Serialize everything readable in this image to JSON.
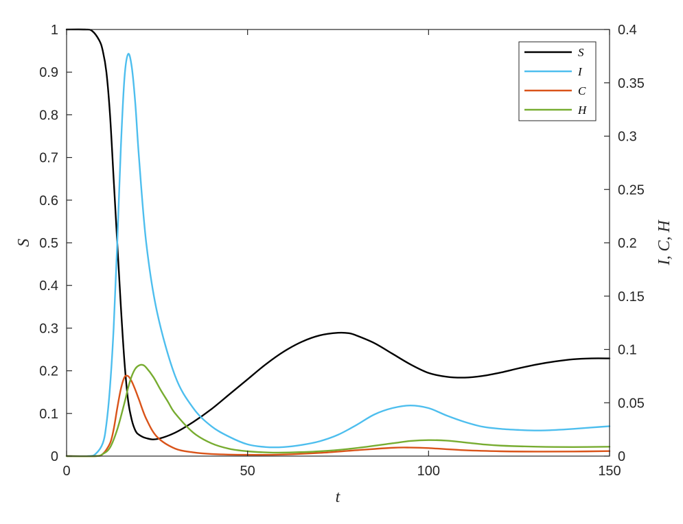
{
  "chart_data": {
    "type": "line",
    "xlabel": "t",
    "ylabel_left": "S",
    "ylabel_right": "I, C, H",
    "xlim": [
      0,
      150
    ],
    "ylim_left": [
      0,
      1
    ],
    "ylim_right": [
      0,
      0.4
    ],
    "x_ticks": [
      0,
      50,
      100,
      150
    ],
    "x_tick_labels": [
      "0",
      "50",
      "100",
      "150"
    ],
    "y_left_ticks": [
      0,
      0.1,
      0.2,
      0.3,
      0.4,
      0.5,
      0.6,
      0.7,
      0.8,
      0.9,
      1
    ],
    "y_left_tick_labels": [
      "0",
      "0.1",
      "0.2",
      "0.3",
      "0.4",
      "0.5",
      "0.6",
      "0.7",
      "0.8",
      "0.9",
      "1"
    ],
    "y_right_ticks": [
      0,
      0.05,
      0.1,
      0.15,
      0.2,
      0.25,
      0.3,
      0.35,
      0.4
    ],
    "y_right_tick_labels": [
      "0",
      "0.05",
      "0.1",
      "0.15",
      "0.2",
      "0.25",
      "0.3",
      "0.35",
      "0.4"
    ],
    "grid": false,
    "legend_placement": "top-right",
    "series": [
      {
        "name": "S",
        "axis": "left",
        "color": "#000000",
        "points": [
          [
            0,
            1
          ],
          [
            5,
            1
          ],
          [
            7,
            0.997
          ],
          [
            9,
            0.975
          ],
          [
            10,
            0.95
          ],
          [
            11,
            0.9
          ],
          [
            12,
            0.8
          ],
          [
            13,
            0.65
          ],
          [
            14,
            0.5
          ],
          [
            15,
            0.35
          ],
          [
            16,
            0.22
          ],
          [
            17,
            0.13
          ],
          [
            18,
            0.085
          ],
          [
            19,
            0.06
          ],
          [
            20,
            0.05
          ],
          [
            22,
            0.042
          ],
          [
            25,
            0.04
          ],
          [
            30,
            0.055
          ],
          [
            35,
            0.08
          ],
          [
            40,
            0.11
          ],
          [
            45,
            0.145
          ],
          [
            50,
            0.18
          ],
          [
            55,
            0.215
          ],
          [
            60,
            0.245
          ],
          [
            65,
            0.268
          ],
          [
            70,
            0.283
          ],
          [
            75,
            0.289
          ],
          [
            78,
            0.288
          ],
          [
            80,
            0.283
          ],
          [
            85,
            0.265
          ],
          [
            90,
            0.24
          ],
          [
            95,
            0.215
          ],
          [
            100,
            0.195
          ],
          [
            105,
            0.186
          ],
          [
            110,
            0.184
          ],
          [
            115,
            0.188
          ],
          [
            120,
            0.196
          ],
          [
            125,
            0.206
          ],
          [
            130,
            0.215
          ],
          [
            135,
            0.222
          ],
          [
            140,
            0.227
          ],
          [
            145,
            0.229
          ],
          [
            150,
            0.229
          ]
        ]
      },
      {
        "name": "I",
        "axis": "right",
        "color": "#4DBEEE",
        "points": [
          [
            0,
            0
          ],
          [
            6,
            0
          ],
          [
            8,
            0.002
          ],
          [
            10,
            0.012
          ],
          [
            11,
            0.03
          ],
          [
            12,
            0.065
          ],
          [
            13,
            0.12
          ],
          [
            14,
            0.2
          ],
          [
            15,
            0.29
          ],
          [
            16,
            0.355
          ],
          [
            17,
            0.377
          ],
          [
            18,
            0.365
          ],
          [
            19,
            0.33
          ],
          [
            20,
            0.28
          ],
          [
            22,
            0.2
          ],
          [
            25,
            0.135
          ],
          [
            30,
            0.075
          ],
          [
            35,
            0.045
          ],
          [
            40,
            0.028
          ],
          [
            45,
            0.018
          ],
          [
            50,
            0.011
          ],
          [
            55,
            0.0085
          ],
          [
            60,
            0.0085
          ],
          [
            65,
            0.0105
          ],
          [
            70,
            0.014
          ],
          [
            75,
            0.02
          ],
          [
            80,
            0.029
          ],
          [
            85,
            0.039
          ],
          [
            90,
            0.045
          ],
          [
            95,
            0.0475
          ],
          [
            100,
            0.045
          ],
          [
            105,
            0.038
          ],
          [
            110,
            0.032
          ],
          [
            115,
            0.0275
          ],
          [
            120,
            0.0255
          ],
          [
            125,
            0.0245
          ],
          [
            130,
            0.024
          ],
          [
            135,
            0.0245
          ],
          [
            140,
            0.0255
          ],
          [
            145,
            0.0268
          ],
          [
            150,
            0.028
          ]
        ]
      },
      {
        "name": "C",
        "axis": "right",
        "color": "#D95319",
        "points": [
          [
            0,
            0
          ],
          [
            8,
            0
          ],
          [
            10,
            0.002
          ],
          [
            12,
            0.012
          ],
          [
            13,
            0.025
          ],
          [
            14,
            0.045
          ],
          [
            15,
            0.063
          ],
          [
            16,
            0.074
          ],
          [
            17,
            0.075
          ],
          [
            18,
            0.07
          ],
          [
            19,
            0.062
          ],
          [
            20,
            0.053
          ],
          [
            22,
            0.035
          ],
          [
            25,
            0.018
          ],
          [
            30,
            0.007
          ],
          [
            35,
            0.0035
          ],
          [
            40,
            0.002
          ],
          [
            50,
            0.0012
          ],
          [
            60,
            0.0015
          ],
          [
            70,
            0.003
          ],
          [
            80,
            0.0055
          ],
          [
            90,
            0.0078
          ],
          [
            95,
            0.008
          ],
          [
            100,
            0.0075
          ],
          [
            110,
            0.0055
          ],
          [
            120,
            0.0045
          ],
          [
            130,
            0.0042
          ],
          [
            140,
            0.0043
          ],
          [
            150,
            0.0047
          ]
        ]
      },
      {
        "name": "H",
        "axis": "right",
        "color": "#77AC30",
        "points": [
          [
            0,
            0
          ],
          [
            8,
            0
          ],
          [
            10,
            0.002
          ],
          [
            12,
            0.008
          ],
          [
            14,
            0.025
          ],
          [
            16,
            0.05
          ],
          [
            17,
            0.064
          ],
          [
            18,
            0.075
          ],
          [
            19,
            0.082
          ],
          [
            20,
            0.085
          ],
          [
            21,
            0.0855
          ],
          [
            22,
            0.083
          ],
          [
            24,
            0.074
          ],
          [
            26,
            0.062
          ],
          [
            28,
            0.051
          ],
          [
            30,
            0.04
          ],
          [
            35,
            0.022
          ],
          [
            40,
            0.012
          ],
          [
            45,
            0.0068
          ],
          [
            50,
            0.0045
          ],
          [
            55,
            0.0035
          ],
          [
            60,
            0.0033
          ],
          [
            70,
            0.0045
          ],
          [
            80,
            0.0075
          ],
          [
            90,
            0.012
          ],
          [
            95,
            0.0142
          ],
          [
            100,
            0.015
          ],
          [
            105,
            0.0145
          ],
          [
            110,
            0.0128
          ],
          [
            115,
            0.011
          ],
          [
            120,
            0.0098
          ],
          [
            130,
            0.0088
          ],
          [
            140,
            0.0085
          ],
          [
            150,
            0.0088
          ]
        ]
      }
    ]
  }
}
